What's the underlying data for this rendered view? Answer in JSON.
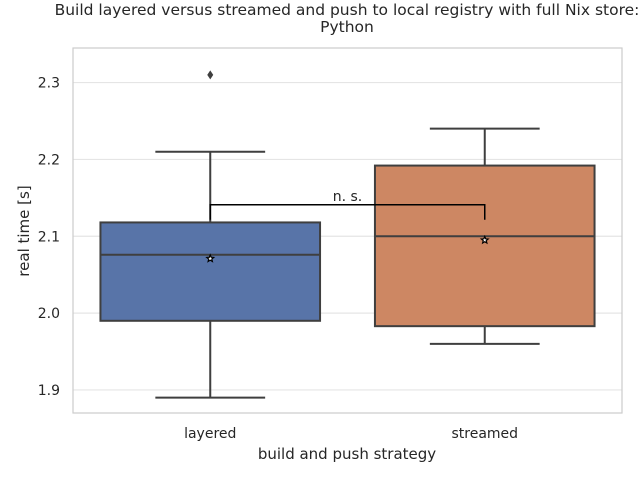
{
  "chart_data": {
    "type": "box",
    "title": "Build layered versus streamed and push to local registry with full Nix store:",
    "subtitle": "Python",
    "xlabel": "build and push strategy",
    "ylabel": "real time [s]",
    "categories": [
      "layered",
      "streamed"
    ],
    "ylim": [
      1.87,
      2.345
    ],
    "yticks": [
      "1.9",
      "2.0",
      "2.1",
      "2.2",
      "2.3"
    ],
    "grid": "horizontal",
    "boxes": [
      {
        "category": "layered",
        "color": "#5874a8",
        "whisker_low": 1.89,
        "q1": 1.99,
        "median": 2.076,
        "q3": 2.118,
        "whisker_high": 2.21,
        "mean": 2.071,
        "outliers": [
          2.31
        ]
      },
      {
        "category": "streamed",
        "color": "#cd8763",
        "whisker_low": 1.96,
        "q1": 1.983,
        "median": 2.1,
        "q3": 2.192,
        "whisker_high": 2.24,
        "mean": 2.095,
        "outliers": []
      }
    ],
    "annotation": {
      "text": "n. s.",
      "between": [
        "layered",
        "streamed"
      ],
      "y": 2.141
    }
  }
}
